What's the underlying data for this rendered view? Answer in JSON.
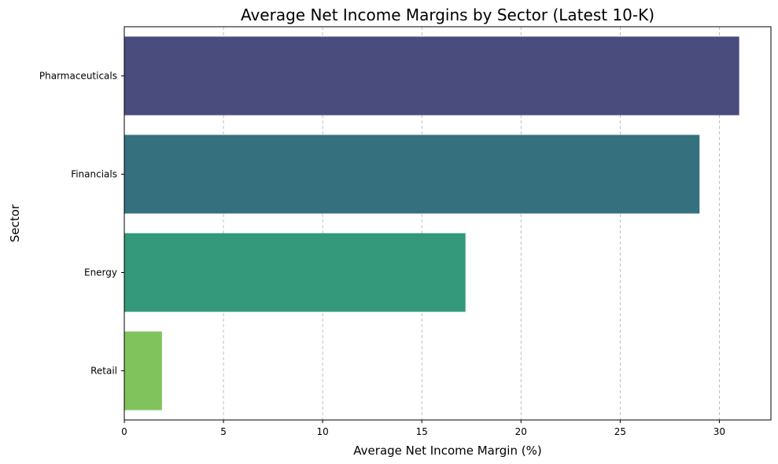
{
  "chart_data": {
    "type": "bar",
    "orientation": "horizontal",
    "title": "Average Net Income Margins by Sector (Latest 10-K)",
    "xlabel": "Average Net Income Margin (%)",
    "ylabel": "Sector",
    "categories": [
      "Pharmaceuticals",
      "Financials",
      "Energy",
      "Retail"
    ],
    "values": [
      31.0,
      29.0,
      17.2,
      1.9
    ],
    "colors": [
      "#4a4c7d",
      "#35707e",
      "#34987a",
      "#80c35d"
    ],
    "xlim": [
      0,
      32.6
    ],
    "xticks": [
      0,
      5,
      10,
      15,
      20,
      25,
      30
    ],
    "xtick_labels": [
      "0",
      "5",
      "10",
      "15",
      "20",
      "25",
      "30"
    ],
    "grid": "x dashed",
    "legend": "none"
  }
}
